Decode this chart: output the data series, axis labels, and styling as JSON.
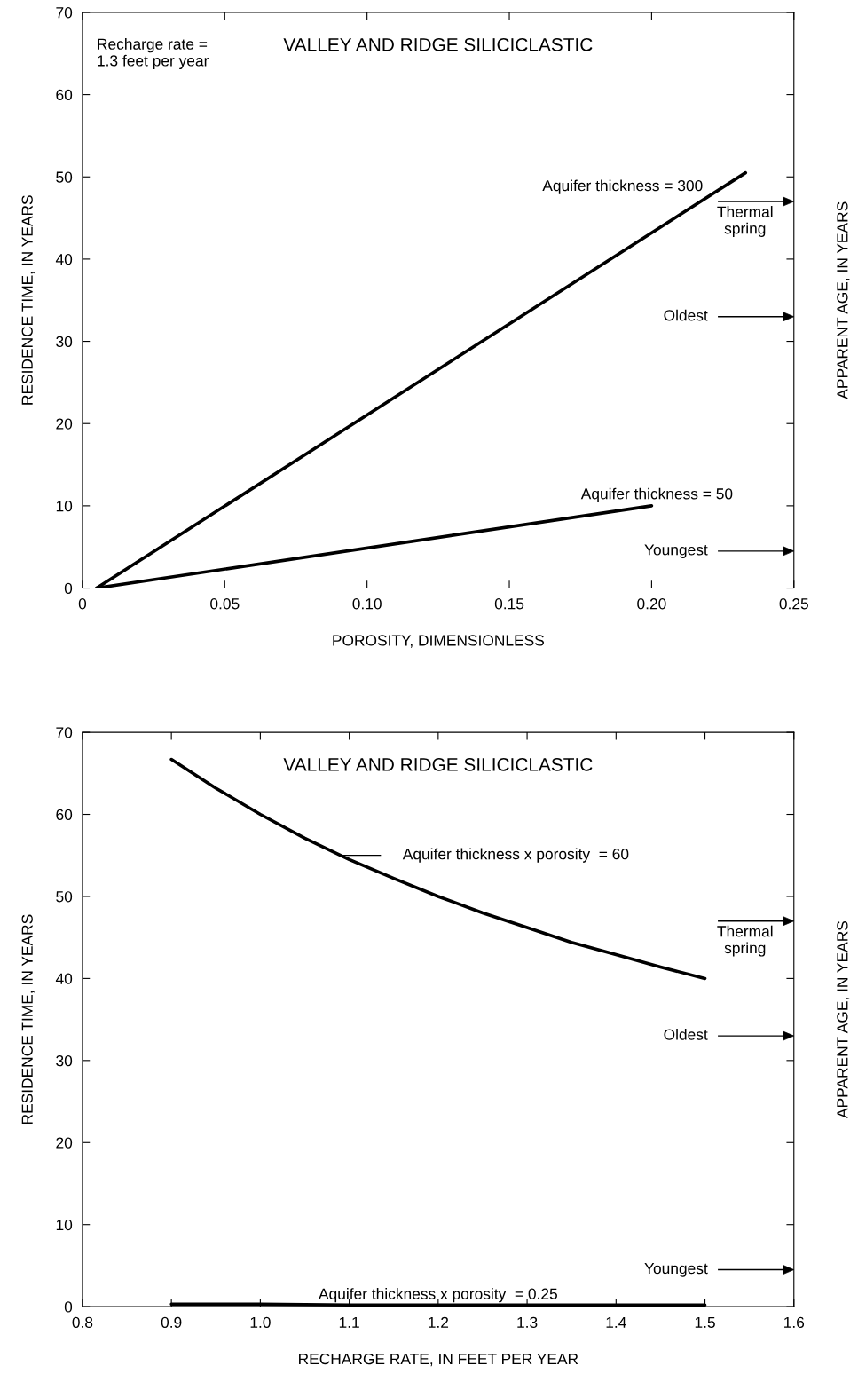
{
  "chart_data": [
    {
      "type": "line",
      "title": "VALLEY AND RIDGE SILICICLASTIC",
      "xlabel": "POROSITY, DIMENSIONLESS",
      "ylabel": "RESIDENCE TIME, IN YEARS",
      "y2label": "APPARENT AGE, IN YEARS",
      "xlim": [
        0,
        0.25
      ],
      "xticks": [
        {
          "value": 0,
          "label": "0"
        },
        {
          "value": 0.05,
          "label": "0.05"
        },
        {
          "value": 0.1,
          "label": "0.10"
        },
        {
          "value": 0.15,
          "label": "0.15"
        },
        {
          "value": 0.2,
          "label": "0.20"
        },
        {
          "value": 0.25,
          "label": "0.25"
        }
      ],
      "ylim": [
        0,
        70
      ],
      "yticks": [
        0,
        10,
        20,
        30,
        40,
        50,
        60,
        70
      ],
      "grid": false,
      "series": [
        {
          "name": "Aquifer thickness = 300",
          "color": "#000000",
          "x": [
            0.005,
            0.233
          ],
          "values": [
            0,
            50.5
          ]
        },
        {
          "name": "Aquifer thickness = 50",
          "color": "#000000",
          "x": [
            0.005,
            0.2
          ],
          "values": [
            0,
            10
          ]
        }
      ],
      "ref_lines": [
        {
          "axis": "y",
          "value": 47,
          "label": "Thermal\nspring",
          "color": "#000000"
        },
        {
          "axis": "y",
          "value": 33,
          "label": "Oldest",
          "color": "#000000"
        },
        {
          "axis": "y",
          "value": 4.5,
          "label": "Youngest",
          "color": "#000000"
        }
      ],
      "annotations": [
        "Recharge rate =\n1.3 feet per year"
      ]
    },
    {
      "type": "line",
      "title": "VALLEY AND RIDGE SILICICLASTIC",
      "xlabel": "RECHARGE RATE, IN FEET PER YEAR",
      "ylabel": "RESIDENCE TIME, IN YEARS",
      "y2label": "APPARENT AGE, IN YEARS",
      "xlim": [
        0.8,
        1.6
      ],
      "xticks": [
        {
          "value": 0.8,
          "label": "0.8"
        },
        {
          "value": 0.9,
          "label": "0.9"
        },
        {
          "value": 1.0,
          "label": "1.0"
        },
        {
          "value": 1.1,
          "label": "1.1"
        },
        {
          "value": 1.2,
          "label": "1.2"
        },
        {
          "value": 1.3,
          "label": "1.3"
        },
        {
          "value": 1.4,
          "label": "1.4"
        },
        {
          "value": 1.5,
          "label": "1.5"
        },
        {
          "value": 1.6,
          "label": "1.6"
        }
      ],
      "ylim": [
        0,
        70
      ],
      "yticks": [
        0,
        10,
        20,
        30,
        40,
        50,
        60,
        70
      ],
      "grid": false,
      "series": [
        {
          "name": "Aquifer thickness x porosity  = 60",
          "color": "#000000",
          "x": [
            0.9,
            0.95,
            1.0,
            1.05,
            1.1,
            1.15,
            1.2,
            1.25,
            1.3,
            1.35,
            1.4,
            1.45,
            1.5
          ],
          "values": [
            66.7,
            63.2,
            60,
            57.1,
            54.5,
            52.2,
            50,
            48,
            46.2,
            44.4,
            42.9,
            41.4,
            40
          ]
        },
        {
          "name": "Aquifer thickness x porosity  = 0.25",
          "color": "#000000",
          "x": [
            0.9,
            1.0,
            1.1,
            1.2,
            1.3,
            1.4,
            1.5
          ],
          "values": [
            0.3,
            0.3,
            0.2,
            0.2,
            0.2,
            0.2,
            0.2
          ]
        }
      ],
      "ref_lines": [
        {
          "axis": "y",
          "value": 47,
          "label": "Thermal\nspring",
          "color": "#000000"
        },
        {
          "axis": "y",
          "value": 33,
          "label": "Oldest",
          "color": "#000000"
        },
        {
          "axis": "y",
          "value": 4.5,
          "label": "Youngest",
          "color": "#000000"
        }
      ]
    }
  ]
}
